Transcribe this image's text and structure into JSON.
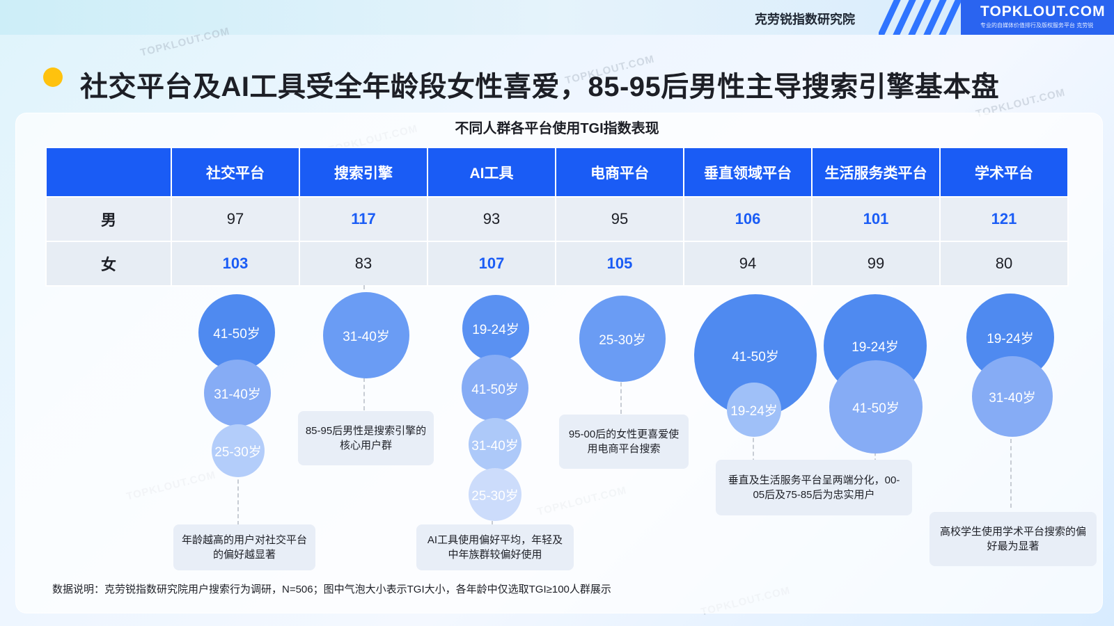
{
  "header": {
    "org": "克劳锐指数研究院",
    "logo": "TOPKLOUT.COM",
    "logo_sub": "专业的自媒体价值排行及版权服务平台 克劳锐",
    "watermark": "TOPKLOUT.COM"
  },
  "title": "社交平台及AI工具受全年龄段女性喜爱，85-95后男性主导搜索引擎基本盘",
  "table": {
    "title": "不同人群各平台使用TGI指数表现",
    "columns": [
      "社交平台",
      "搜索引擎",
      "AI工具",
      "电商平台",
      "垂直领域平台",
      "生活服务类平台",
      "学术平台"
    ],
    "rows": [
      {
        "label": "男",
        "values": [
          "97",
          "117",
          "93",
          "95",
          "106",
          "101",
          "121"
        ]
      },
      {
        "label": "女",
        "values": [
          "103",
          "83",
          "107",
          "105",
          "94",
          "99",
          "80"
        ]
      }
    ]
  },
  "bubbles": [
    {
      "group": "社交平台",
      "label": "41-50岁",
      "color": "#4f8af0"
    },
    {
      "group": "社交平台",
      "label": "31-40岁",
      "color": "#86acf5"
    },
    {
      "group": "社交平台",
      "label": "25-30岁",
      "color": "#b3cdfa"
    },
    {
      "group": "搜索引擎",
      "label": "31-40岁",
      "color": "#6a9cf4"
    },
    {
      "group": "AI工具",
      "label": "19-24岁",
      "color": "#5a91f2"
    },
    {
      "group": "AI工具",
      "label": "41-50岁",
      "color": "#86acf5"
    },
    {
      "group": "AI工具",
      "label": "31-40岁",
      "color": "#adc9f9"
    },
    {
      "group": "AI工具",
      "label": "25-30岁",
      "color": "#ccdcfb"
    },
    {
      "group": "电商平台",
      "label": "25-30岁",
      "color": "#6a9cf4"
    },
    {
      "group": "垂直领域平台",
      "label": "41-50岁",
      "color": "#4f8af0"
    },
    {
      "group": "垂直领域平台",
      "label": "19-24岁",
      "color": "#9fc0f8"
    },
    {
      "group": "生活服务类平台",
      "label": "19-24岁",
      "color": "#4f8af0"
    },
    {
      "group": "生活服务类平台",
      "label": "41-50岁",
      "color": "#86acf5"
    },
    {
      "group": "学术平台",
      "label": "19-24岁",
      "color": "#4f8af0"
    },
    {
      "group": "学术平台",
      "label": "31-40岁",
      "color": "#86acf5"
    }
  ],
  "notes": {
    "social": "年龄越高的用户对社交平台的偏好越显著",
    "search": "85-95后男性是搜索引擎的核心用户群",
    "ai": "AI工具使用偏好平均，年轻及中年族群较偏好使用",
    "ecommerce": "95-00后的女性更喜爱使用电商平台搜索",
    "vertical_life": "垂直及生活服务平台呈两端分化，00-05后及75-85后为忠实用户",
    "academic": "高校学生使用学术平台搜索的偏好最为显著"
  },
  "footnote": "数据说明：克劳锐指数研究院用户搜索行为调研，N=506；图中气泡大小表示TGI大小，各年龄中仅选取TGI≥100人群展示"
}
